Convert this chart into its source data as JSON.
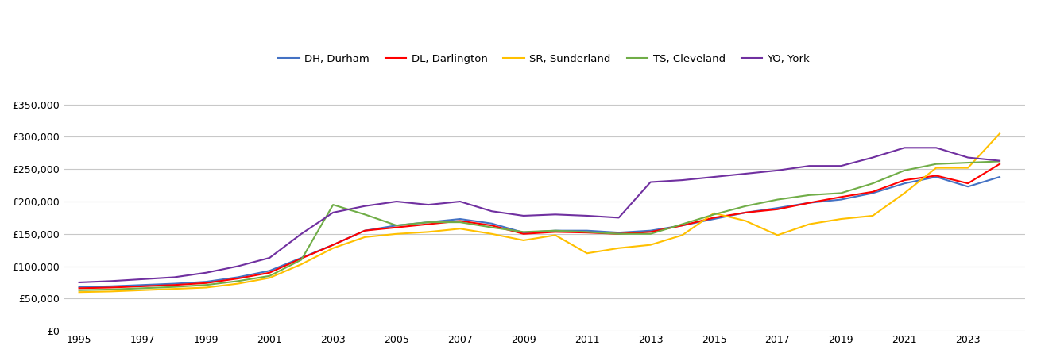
{
  "series": {
    "DH, Durham": {
      "color": "#4472C4",
      "data": {
        "1995": 68000,
        "1996": 69000,
        "1997": 71000,
        "1998": 73000,
        "1999": 76000,
        "2000": 83000,
        "2001": 93000,
        "2002": 113000,
        "2003": 133000,
        "2004": 155000,
        "2005": 163000,
        "2006": 168000,
        "2007": 173000,
        "2008": 166000,
        "2009": 152000,
        "2010": 155000,
        "2011": 155000,
        "2012": 152000,
        "2013": 155000,
        "2014": 163000,
        "2015": 173000,
        "2016": 183000,
        "2017": 190000,
        "2018": 198000,
        "2019": 203000,
        "2020": 213000,
        "2021": 228000,
        "2022": 238000,
        "2023": 223000,
        "2024": 238000
      }
    },
    "DL, Darlington": {
      "color": "#FF0000",
      "data": {
        "1995": 66000,
        "1996": 67000,
        "1997": 69000,
        "1998": 71000,
        "1999": 74000,
        "2000": 81000,
        "2001": 90000,
        "2002": 112000,
        "2003": 133000,
        "2004": 155000,
        "2005": 160000,
        "2006": 165000,
        "2007": 170000,
        "2008": 163000,
        "2009": 150000,
        "2010": 153000,
        "2011": 152000,
        "2012": 150000,
        "2013": 153000,
        "2014": 163000,
        "2015": 175000,
        "2016": 183000,
        "2017": 188000,
        "2018": 198000,
        "2019": 207000,
        "2020": 215000,
        "2021": 233000,
        "2022": 240000,
        "2023": 228000,
        "2024": 258000
      }
    },
    "SR, Sunderland": {
      "color": "#FFC000",
      "data": {
        "1995": 60000,
        "1996": 61000,
        "1997": 63000,
        "1998": 65000,
        "1999": 67000,
        "2000": 73000,
        "2001": 82000,
        "2002": 103000,
        "2003": 128000,
        "2004": 145000,
        "2005": 150000,
        "2006": 153000,
        "2007": 158000,
        "2008": 150000,
        "2009": 140000,
        "2010": 148000,
        "2011": 120000,
        "2012": 128000,
        "2013": 133000,
        "2014": 148000,
        "2015": 182000,
        "2016": 170000,
        "2017": 148000,
        "2018": 165000,
        "2019": 173000,
        "2020": 178000,
        "2021": 213000,
        "2022": 252000,
        "2023": 252000,
        "2024": 305000
      }
    },
    "TS, Cleveland": {
      "color": "#70AD47",
      "data": {
        "1995": 63000,
        "1996": 64000,
        "1997": 66000,
        "1998": 68000,
        "1999": 71000,
        "2000": 77000,
        "2001": 85000,
        "2002": 110000,
        "2003": 195000,
        "2004": 180000,
        "2005": 163000,
        "2006": 168000,
        "2007": 168000,
        "2008": 160000,
        "2009": 153000,
        "2010": 155000,
        "2011": 153000,
        "2012": 150000,
        "2013": 150000,
        "2014": 165000,
        "2015": 180000,
        "2016": 193000,
        "2017": 203000,
        "2018": 210000,
        "2019": 213000,
        "2020": 228000,
        "2021": 248000,
        "2022": 258000,
        "2023": 260000,
        "2024": 262000
      }
    },
    "YO, York": {
      "color": "#7030A0",
      "data": {
        "1995": 75000,
        "1996": 77000,
        "1997": 80000,
        "1998": 83000,
        "1999": 90000,
        "2000": 100000,
        "2001": 113000,
        "2002": 150000,
        "2003": 183000,
        "2004": 193000,
        "2005": 200000,
        "2006": 195000,
        "2007": 200000,
        "2008": 185000,
        "2009": 178000,
        "2010": 180000,
        "2011": 178000,
        "2012": 175000,
        "2013": 230000,
        "2014": 233000,
        "2015": 238000,
        "2016": 243000,
        "2017": 248000,
        "2018": 255000,
        "2019": 255000,
        "2020": 268000,
        "2021": 283000,
        "2022": 283000,
        "2023": 268000,
        "2024": 263000
      }
    }
  },
  "ylim": [
    0,
    375000
  ],
  "yticks": [
    0,
    50000,
    100000,
    150000,
    200000,
    250000,
    300000,
    350000
  ],
  "xtick_years": [
    "1995",
    "1997",
    "1999",
    "2001",
    "2003",
    "2005",
    "2007",
    "2009",
    "2011",
    "2013",
    "2015",
    "2017",
    "2019",
    "2021",
    "2023"
  ],
  "grid_color": "#C8C8C8",
  "background_color": "#FFFFFF",
  "line_width": 1.5
}
